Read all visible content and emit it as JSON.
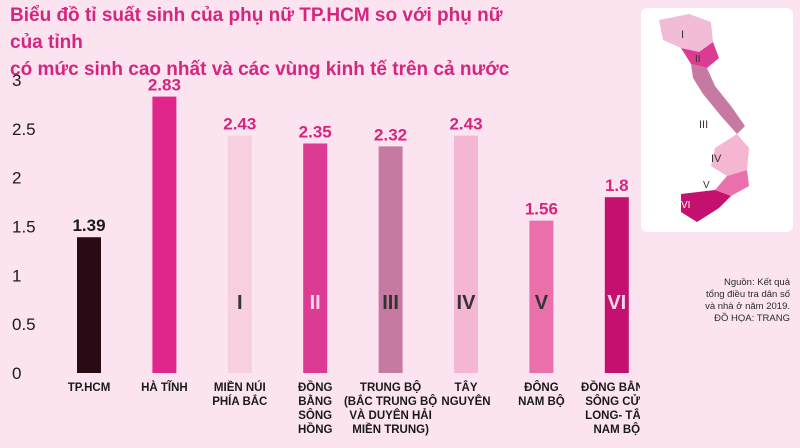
{
  "title_lines": [
    "Biểu đồ tỉ suất sinh của phụ nữ TP.HCM so với phụ nữ của tỉnh",
    "có mức sinh cao nhất và các vùng kinh tế trên cả nước"
  ],
  "colors": {
    "title": "#d5267f",
    "axis_text": "#1a1a1a",
    "value_label": "#d5267f",
    "value_label_first": "#1a1a1a"
  },
  "chart_data": {
    "type": "bar",
    "categories": [
      [
        "TP.HCM"
      ],
      [
        "HÀ TĨNH"
      ],
      [
        "MIỀN NÚI",
        "PHÍA BẮC"
      ],
      [
        "ĐỒNG",
        "BẰNG",
        "SÔNG",
        "HỒNG"
      ],
      [
        "TRUNG BỘ",
        "(BẮC TRUNG BỘ",
        "VÀ DUYÊN HẢI",
        "MIỀN TRUNG)"
      ],
      [
        "TÂY",
        "NGUYÊN"
      ],
      [
        "ĐÔNG",
        "NAM BỘ"
      ],
      [
        "ĐỒNG BẰNG",
        "SÔNG CỬU",
        "LONG- TÂY",
        "NAM BỘ"
      ]
    ],
    "values": [
      1.39,
      2.83,
      2.43,
      2.35,
      2.32,
      2.43,
      1.56,
      1.8
    ],
    "value_labels": [
      "1.39",
      "2.83",
      "2.43",
      "2.35",
      "2.32",
      "2.43",
      "1.56",
      "1.8"
    ],
    "bar_labels": [
      "",
      "",
      "I",
      "II",
      "III",
      "IV",
      "V",
      "VI"
    ],
    "bar_colors": [
      "#2a0a14",
      "#e0268a",
      "#f8cfe1",
      "#dc3b93",
      "#c77aa1",
      "#f4b6d1",
      "#ea70ab",
      "#c4106e"
    ],
    "bar_label_colors": [
      "",
      "",
      "#333333",
      "#f6d7e6",
      "#333333",
      "#333333",
      "#333333",
      "#f6d7e6"
    ],
    "y_ticks": [
      "0",
      "0.5",
      "1",
      "1.5",
      "2",
      "2.5",
      "3"
    ],
    "ylim": [
      0,
      3
    ],
    "grid": false
  },
  "map": {
    "region_labels": [
      "I",
      "II",
      "III",
      "IV",
      "V",
      "VI"
    ]
  },
  "note_lines": [
    "Nguồn: Kết quả",
    "tổng điều tra dân số",
    "và nhà ở năm 2019.",
    "ĐỒ HỌA: TRANG"
  ]
}
